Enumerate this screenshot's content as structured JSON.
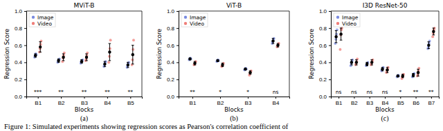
{
  "chart_data": [
    {
      "type": "scatter",
      "title": "MViT-B",
      "subtitle": "(a)",
      "x_label": "Blocks",
      "y_label": "Regression Score",
      "categories": [
        "B1",
        "B2",
        "B3",
        "B4",
        "B5"
      ],
      "ylim": [
        0,
        1
      ],
      "yticks": [
        {
          "value": 0,
          "label": "0.0"
        },
        0.2,
        0.4,
        0.6,
        0.8,
        {
          "value": 1,
          "label": "1.0"
        }
      ],
      "legend": "upper left",
      "marker": "o",
      "annotations": [
        "***",
        "**",
        "**",
        "**",
        "**"
      ],
      "series": [
        {
          "name": "Image",
          "color": "#7b8ce0",
          "values": [
            0.48,
            0.42,
            0.41,
            0.38,
            0.37
          ],
          "error": [
            0.02,
            0.02,
            0.02,
            0.03,
            0.03
          ],
          "points": [
            [
              0.46,
              0.48,
              0.5,
              0.49
            ],
            [
              0.4,
              0.42,
              0.43,
              0.44
            ],
            [
              0.39,
              0.41,
              0.42,
              0.43
            ],
            [
              0.35,
              0.37,
              0.4,
              0.41
            ],
            [
              0.34,
              0.36,
              0.39,
              0.4
            ]
          ]
        },
        {
          "name": "Video",
          "color": "#f07f7a",
          "values": [
            0.58,
            0.46,
            0.46,
            0.52,
            0.49
          ],
          "error": [
            0.06,
            0.04,
            0.04,
            0.1,
            0.11
          ],
          "points": [
            [
              0.52,
              0.56,
              0.61,
              0.65
            ],
            [
              0.41,
              0.45,
              0.48,
              0.51
            ],
            [
              0.42,
              0.44,
              0.48,
              0.51
            ],
            [
              0.4,
              0.47,
              0.56,
              0.66
            ],
            [
              0.37,
              0.43,
              0.55,
              0.66
            ]
          ]
        }
      ]
    },
    {
      "type": "scatter",
      "title": "ViT-B",
      "subtitle": "(b)",
      "x_label": "Blocks",
      "y_label": "Regression Score",
      "categories": [
        "B1",
        "B2",
        "B3",
        "B4"
      ],
      "ylim": [
        0,
        1
      ],
      "yticks": [
        {
          "value": 0,
          "label": "0.0"
        },
        0.2,
        0.4,
        0.6,
        0.8,
        {
          "value": 1,
          "label": "1.0"
        }
      ],
      "legend": "upper left",
      "marker": "o",
      "annotations": [
        "**",
        "*",
        "*",
        "ns"
      ],
      "series": [
        {
          "name": "Image",
          "color": "#7b8ce0",
          "values": [
            0.44,
            0.42,
            0.32,
            0.65
          ],
          "error": [
            0.01,
            0.01,
            0.01,
            0.03
          ],
          "points": [
            [
              0.43,
              0.44,
              0.45,
              0.44
            ],
            [
              0.41,
              0.42,
              0.43,
              0.42
            ],
            [
              0.31,
              0.32,
              0.33,
              0.32
            ],
            [
              0.62,
              0.64,
              0.67,
              0.68
            ]
          ]
        },
        {
          "name": "Video",
          "color": "#f07f7a",
          "values": [
            0.39,
            0.37,
            0.28,
            0.6
          ],
          "error": [
            0.02,
            0.02,
            0.02,
            0.02
          ],
          "points": [
            [
              0.37,
              0.38,
              0.4,
              0.41
            ],
            [
              0.35,
              0.36,
              0.38,
              0.39
            ],
            [
              0.25,
              0.27,
              0.29,
              0.3
            ],
            [
              0.58,
              0.59,
              0.61,
              0.62
            ]
          ]
        }
      ]
    },
    {
      "type": "scatter",
      "title": "I3D ResNet-50",
      "subtitle": "(c)",
      "x_label": "Blocks",
      "y_label": "Regression Score",
      "categories": [
        "B1",
        "B2",
        "B3",
        "B4",
        "B5",
        "B6",
        "B7"
      ],
      "ylim": [
        0,
        1
      ],
      "yticks": [
        {
          "value": 0,
          "label": "0.0"
        },
        0.2,
        0.4,
        0.6,
        0.8,
        {
          "value": 1,
          "label": "1.0"
        }
      ],
      "legend": "upper left",
      "marker": "o",
      "annotations": [
        "ns",
        "ns",
        "ns",
        "ns",
        "*",
        "**",
        "**"
      ],
      "series": [
        {
          "name": "Image",
          "color": "#7b8ce0",
          "values": [
            0.7,
            0.4,
            0.38,
            0.32,
            0.24,
            0.25,
            0.6
          ],
          "error": [
            0.07,
            0.03,
            0.02,
            0.02,
            0.01,
            0.02,
            0.04
          ],
          "points": [
            [
              0.62,
              0.67,
              0.73,
              0.78
            ],
            [
              0.36,
              0.39,
              0.41,
              0.43
            ],
            [
              0.36,
              0.37,
              0.39,
              0.4
            ],
            [
              0.3,
              0.31,
              0.33,
              0.34
            ],
            [
              0.23,
              0.24,
              0.25,
              0.24
            ],
            [
              0.23,
              0.24,
              0.26,
              0.27
            ],
            [
              0.56,
              0.58,
              0.62,
              0.65
            ]
          ]
        },
        {
          "name": "Video",
          "color": "#f07f7a",
          "values": [
            0.73,
            0.4,
            0.4,
            0.31,
            0.24,
            0.28,
            0.76
          ],
          "error": [
            0.07,
            0.03,
            0.03,
            0.03,
            0.02,
            0.04,
            0.04
          ],
          "points": [
            [
              0.55,
              0.72,
              0.78,
              0.8
            ],
            [
              0.37,
              0.39,
              0.41,
              0.44
            ],
            [
              0.37,
              0.39,
              0.41,
              0.43
            ],
            [
              0.28,
              0.3,
              0.32,
              0.34
            ],
            [
              0.21,
              0.23,
              0.25,
              0.26
            ],
            [
              0.24,
              0.26,
              0.3,
              0.33
            ],
            [
              0.7,
              0.74,
              0.78,
              0.8
            ]
          ]
        }
      ]
    }
  ],
  "caption": "Figure 1: Simulated experiments showing regression scores as Pearson's correlation coefficient of"
}
